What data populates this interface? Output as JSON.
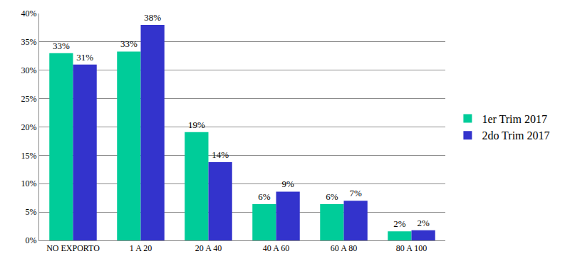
{
  "chart_data": {
    "type": "bar",
    "categories": [
      "NO EXPORTO",
      "1 A 20",
      "20 A 40",
      "40 A 60",
      "60 A 80",
      "80 A 100"
    ],
    "series": [
      {
        "name": "1er Trim 2017",
        "color": "#00cc99",
        "values": [
          33,
          33.3,
          19.1,
          6.4,
          6.4,
          1.6
        ],
        "value_labels": [
          "33%",
          "33%",
          "19%",
          "6%",
          "6%",
          "2%"
        ]
      },
      {
        "name": "2do Trim 2017",
        "color": "#3333cc",
        "values": [
          31,
          38,
          13.8,
          8.6,
          7,
          1.8
        ],
        "value_labels": [
          "31%",
          "38%",
          "14%",
          "9%",
          "7%",
          "2%"
        ]
      }
    ],
    "ylim": [
      0,
      40
    ],
    "yticks": [
      {
        "value": 0,
        "label": "0%"
      },
      {
        "value": 5,
        "label": "5%"
      },
      {
        "value": 10,
        "label": "10%"
      },
      {
        "value": 15,
        "label": "15%"
      },
      {
        "value": 20,
        "label": "20%"
      },
      {
        "value": 25,
        "label": "25%"
      },
      {
        "value": 30,
        "label": "30%"
      },
      {
        "value": 35,
        "label": "35%"
      },
      {
        "value": 40,
        "label": "40%"
      }
    ],
    "grid": true,
    "legend": "right",
    "data_labels": true
  }
}
